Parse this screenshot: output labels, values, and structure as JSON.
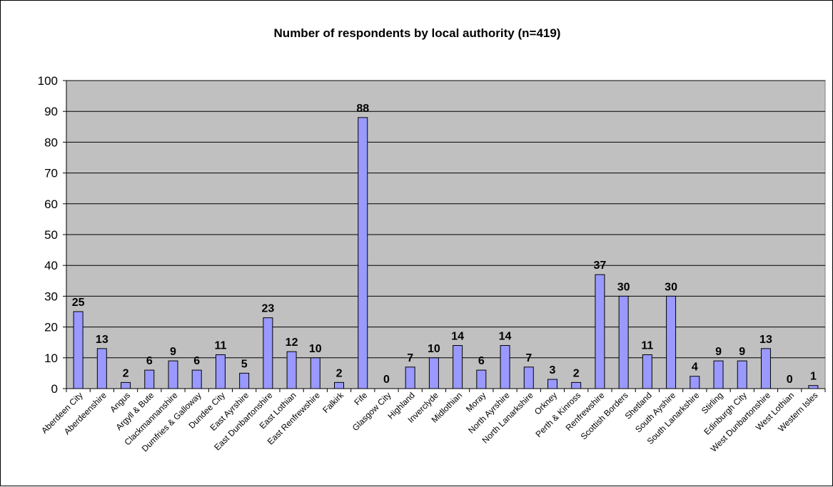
{
  "chart_data": {
    "type": "bar",
    "title": "Number of respondents by local authority (n=419)",
    "xlabel": "",
    "ylabel": "",
    "ylim": [
      0,
      100
    ],
    "yticks": [
      0,
      10,
      20,
      30,
      40,
      50,
      60,
      70,
      80,
      90,
      100
    ],
    "grid": true,
    "legend": "none",
    "plot_background": "#C0C0C0",
    "bar_color": "#9999FF",
    "categories": [
      "Aberdeen City",
      "Aberdeenshire",
      "Angus",
      "Argyll & Bute",
      "Clackmannanshire",
      "Dumfries & Galloway",
      "Dundee City",
      "East Ayrshire",
      "East Dunbartonshire",
      "East Lothian",
      "East Renfrewshire",
      "Falkirk",
      "Fife",
      "Glasgow City",
      "Highland",
      "Inverclyde",
      "Midlothian",
      "Moray",
      "North Ayrshire",
      "North Lanarkshire",
      "Orkney",
      "Perth & Kinross",
      "Renfrewshire",
      "Scottish Borders",
      "Shetland",
      "South Ayshire",
      "South Lanarkshire",
      "Stirling",
      "Edinburgh City",
      "West Dunbartonshire",
      "West Lothian",
      "Western Isles"
    ],
    "values": [
      25,
      13,
      2,
      6,
      9,
      6,
      11,
      5,
      23,
      12,
      10,
      2,
      88,
      0,
      7,
      10,
      14,
      6,
      14,
      7,
      3,
      2,
      37,
      30,
      11,
      30,
      4,
      9,
      9,
      13,
      0,
      1
    ]
  }
}
